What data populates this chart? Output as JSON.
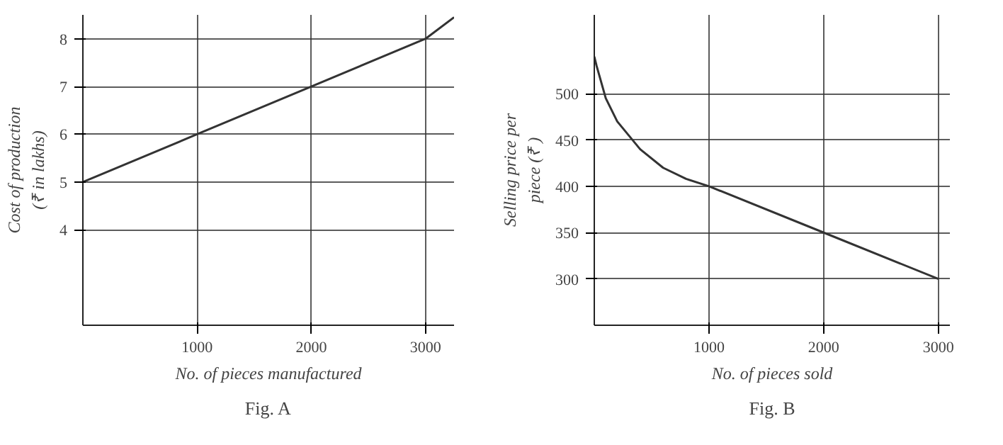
{
  "chart_data": [
    {
      "type": "line",
      "title": "Fig. A",
      "xlabel": "No. of pieces manufactured",
      "ylabel": "Cost of production\n(₹ in lakhs)",
      "x": [
        0,
        1000,
        2000,
        3000,
        3250
      ],
      "values": [
        5,
        6,
        7,
        8,
        8.45
      ],
      "color": "#333333",
      "xlim": [
        0,
        3250
      ],
      "ylim": [
        2,
        8.5
      ],
      "xticks": [
        1000,
        2000,
        3000
      ],
      "yticks": [
        4,
        5,
        6,
        7,
        8
      ],
      "grid": true,
      "marker": "none",
      "line_style": "solid"
    },
    {
      "type": "line",
      "title": "Fig. B",
      "xlabel": "No. of pieces sold",
      "ylabel": "Selling price per\npiece (₹ )",
      "x": [
        0,
        20,
        100,
        200,
        400,
        600,
        800,
        1000,
        2000,
        3000
      ],
      "values": [
        540,
        530,
        495,
        470,
        440,
        420,
        408,
        400,
        350,
        300
      ],
      "color": "#333333",
      "xlim": [
        0,
        3100
      ],
      "ylim": [
        250,
        585
      ],
      "xticks": [
        1000,
        2000,
        3000
      ],
      "yticks": [
        300,
        350,
        400,
        450,
        500
      ],
      "grid": true,
      "marker": "none",
      "line_style": "solid"
    }
  ]
}
